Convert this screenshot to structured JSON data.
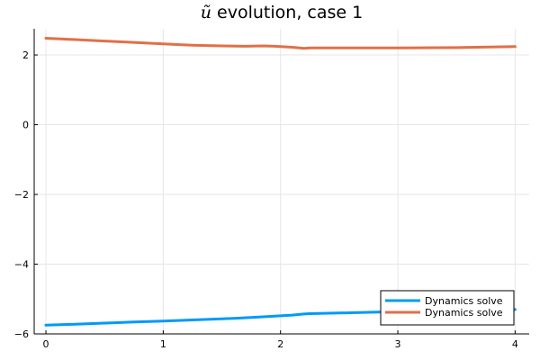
{
  "chart_data": {
    "type": "line",
    "title_symbol": "ũ",
    "title_rest": " evolution, case 1",
    "xlim": [
      -0.1,
      4.12
    ],
    "ylim": [
      -6,
      2.75
    ],
    "xticks": [
      0,
      1,
      2,
      3,
      4
    ],
    "yticks": [
      -6,
      -4,
      -2,
      0,
      2
    ],
    "ytick_labels": [
      "−6",
      "−4",
      "−2",
      "0",
      "2"
    ],
    "grid": true,
    "legend_position": "bottom-right",
    "series": [
      {
        "name": "Dynamics solve",
        "color": "#009af9",
        "x": [
          0,
          0.25,
          0.5,
          0.75,
          1.0,
          1.25,
          1.5,
          1.75,
          1.9,
          2.1,
          2.2,
          2.25,
          2.5,
          2.75,
          3.0,
          3.25,
          3.5,
          3.75,
          4.0
        ],
        "y": [
          -5.75,
          -5.72,
          -5.69,
          -5.66,
          -5.63,
          -5.6,
          -5.57,
          -5.53,
          -5.5,
          -5.46,
          -5.43,
          -5.42,
          -5.4,
          -5.38,
          -5.36,
          -5.35,
          -5.33,
          -5.32,
          -5.3
        ]
      },
      {
        "name": "Dynamics solve",
        "color": "#e26f46",
        "x": [
          0,
          0.25,
          0.5,
          0.75,
          1.0,
          1.1,
          1.25,
          1.5,
          1.7,
          1.85,
          1.95,
          2.1,
          2.2,
          2.25,
          2.5,
          3.0,
          3.5,
          4.0
        ],
        "y": [
          2.48,
          2.44,
          2.4,
          2.36,
          2.32,
          2.3,
          2.28,
          2.26,
          2.25,
          2.26,
          2.25,
          2.22,
          2.19,
          2.2,
          2.2,
          2.2,
          2.21,
          2.24
        ]
      }
    ]
  }
}
